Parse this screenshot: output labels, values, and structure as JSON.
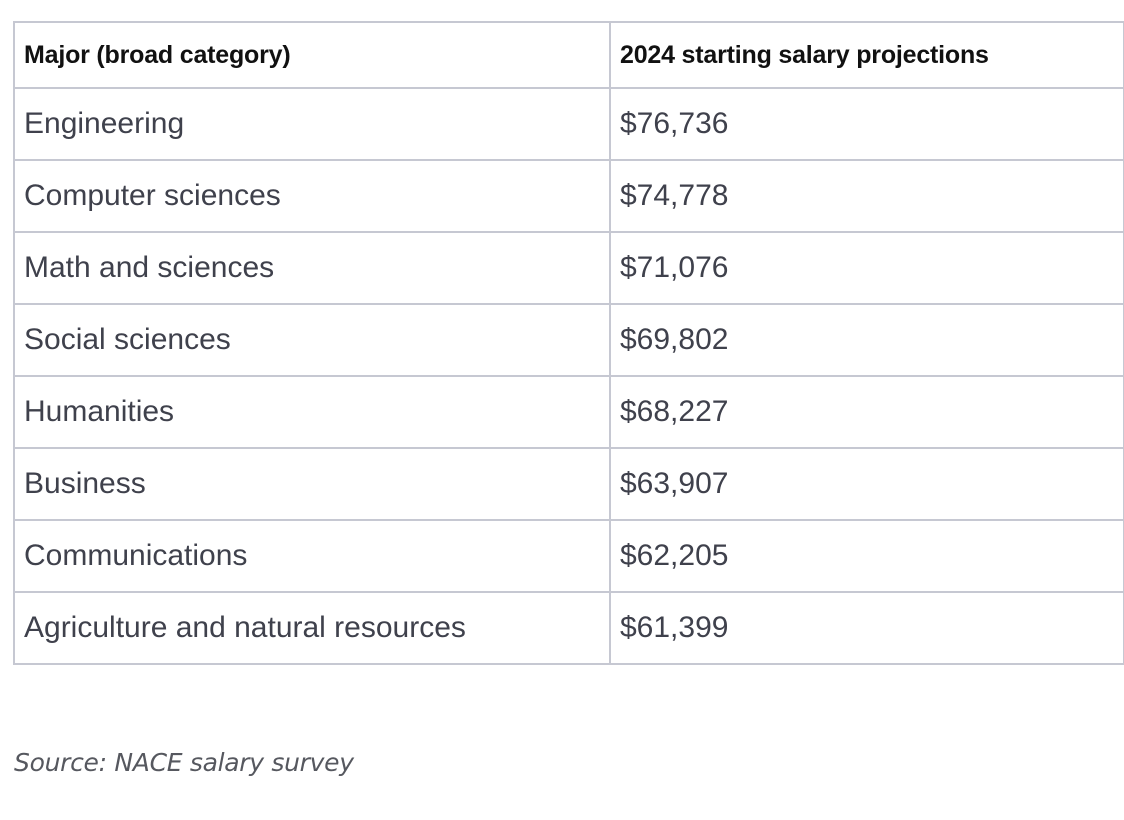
{
  "table": {
    "headers": [
      "Major (broad category)",
      "2024 starting salary projections"
    ],
    "rows": [
      [
        "Engineering",
        "$76,736"
      ],
      [
        "Computer sciences",
        "$74,778"
      ],
      [
        "Math and sciences",
        "$71,076"
      ],
      [
        "Social sciences",
        "$69,802"
      ],
      [
        "Humanities",
        "$68,227"
      ],
      [
        "Business",
        "$63,907"
      ],
      [
        "Communications",
        "$62,205"
      ],
      [
        "Agriculture and natural resources",
        "$61,399"
      ]
    ]
  },
  "source": "Source: NACE salary survey",
  "colors": {
    "border": "#c6c8d2",
    "header_text": "#111111",
    "cell_text": "#3f414c",
    "source_text": "#56585f"
  }
}
